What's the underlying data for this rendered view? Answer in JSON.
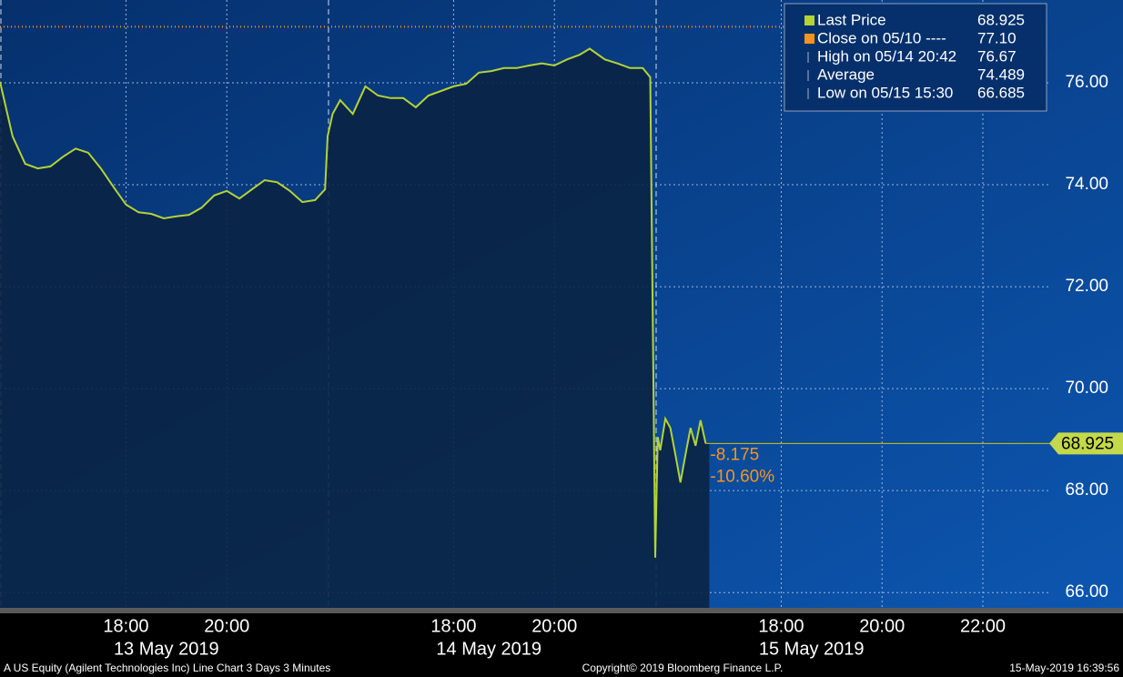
{
  "chart_data": {
    "type": "line",
    "series": [
      {
        "name": "Last Price",
        "color": "#b4d335",
        "x": [
          0,
          0.25,
          0.5,
          0.75,
          1,
          1.25,
          1.5,
          1.75,
          2,
          2.25,
          2.5,
          2.75,
          3,
          3.25,
          3.5,
          3.75,
          4,
          4.25,
          4.5,
          4.75,
          5,
          5.25,
          5.5,
          5.75,
          6,
          6.25,
          6.45,
          6.5,
          6.6,
          6.75,
          7,
          7.25,
          7.5,
          7.75,
          8,
          8.25,
          8.5,
          8.75,
          9,
          9.25,
          9.5,
          9.75,
          10,
          10.25,
          10.5,
          10.75,
          11,
          11.25,
          11.5,
          11.7,
          12,
          12.25,
          12.5,
          12.75,
          12.9,
          13,
          13.05,
          13.1,
          13.2,
          13.3,
          13.4,
          13.5,
          13.6,
          13.7,
          13.8,
          13.9,
          14
        ],
        "values": [
          76.02,
          74.95,
          74.41,
          74.32,
          74.36,
          74.55,
          74.71,
          74.63,
          74.32,
          73.96,
          73.61,
          73.46,
          73.43,
          73.34,
          73.38,
          73.41,
          73.55,
          73.79,
          73.88,
          73.73,
          73.91,
          74.09,
          74.05,
          73.88,
          73.66,
          73.7,
          73.91,
          74.95,
          75.39,
          75.66,
          75.39,
          75.93,
          75.75,
          75.7,
          75.7,
          75.52,
          75.75,
          75.84,
          75.93,
          75.98,
          76.2,
          76.23,
          76.29,
          76.29,
          76.34,
          76.38,
          76.34,
          76.46,
          76.55,
          76.67,
          76.46,
          76.38,
          76.29,
          76.29,
          76.11,
          66.685,
          69.05,
          68.79,
          69.41,
          69.23,
          68.7,
          68.16,
          68.7,
          69.23,
          68.88,
          69.38,
          68.925
        ]
      }
    ],
    "reference_lines": [
      {
        "name": "Close on 05/10 ----",
        "value": 77.1,
        "label": "77.10",
        "color": "#f7941d"
      }
    ],
    "stats": [
      {
        "name": "High on 05/14 20:42",
        "value": 76.67
      },
      {
        "name": "Average",
        "value": 74.489
      },
      {
        "name": "Low on 05/15 15:30",
        "value": 66.685
      }
    ],
    "annotations": [
      {
        "value": -8.175
      },
      {
        "value": -10.6,
        "label": "-10.60%"
      }
    ],
    "xlim": [
      0,
      20.8
    ],
    "ylim": [
      65.7,
      77.625
    ],
    "xticks": [
      {
        "value": 2.5,
        "label": "18:00"
      },
      {
        "value": 4.5,
        "label": "20:00"
      },
      {
        "value": 9,
        "label": "18:00"
      },
      {
        "value": 11,
        "label": "20:00"
      },
      {
        "value": 15.5,
        "label": "18:00"
      },
      {
        "value": 17.5,
        "label": "20:00"
      },
      {
        "value": 19.5,
        "label": "22:00"
      }
    ],
    "x_group_labels": [
      {
        "value": 3.3,
        "label": "13 May 2019"
      },
      {
        "value": 9.7,
        "label": "14 May 2019"
      },
      {
        "value": 16.1,
        "label": "15 May 2019"
      }
    ],
    "day_breaks": [
      0,
      6.5,
      13
    ],
    "yticks": [
      {
        "value": 66,
        "label": "66.00"
      },
      {
        "value": 68,
        "label": "68.00"
      },
      {
        "value": 70,
        "label": "70.00"
      },
      {
        "value": 72,
        "label": "72.00"
      },
      {
        "value": 74,
        "label": "74.00"
      },
      {
        "value": 76,
        "label": "76.00"
      }
    ],
    "grid": true,
    "footer_left": "A US Equity (Agilent Technologies Inc) Line Chart 3 Days 3 Minutes",
    "copyright": "Copyright© 2019 Bloomberg Finance L.P.",
    "timestamp": "15-May-2019 16:39:56"
  }
}
